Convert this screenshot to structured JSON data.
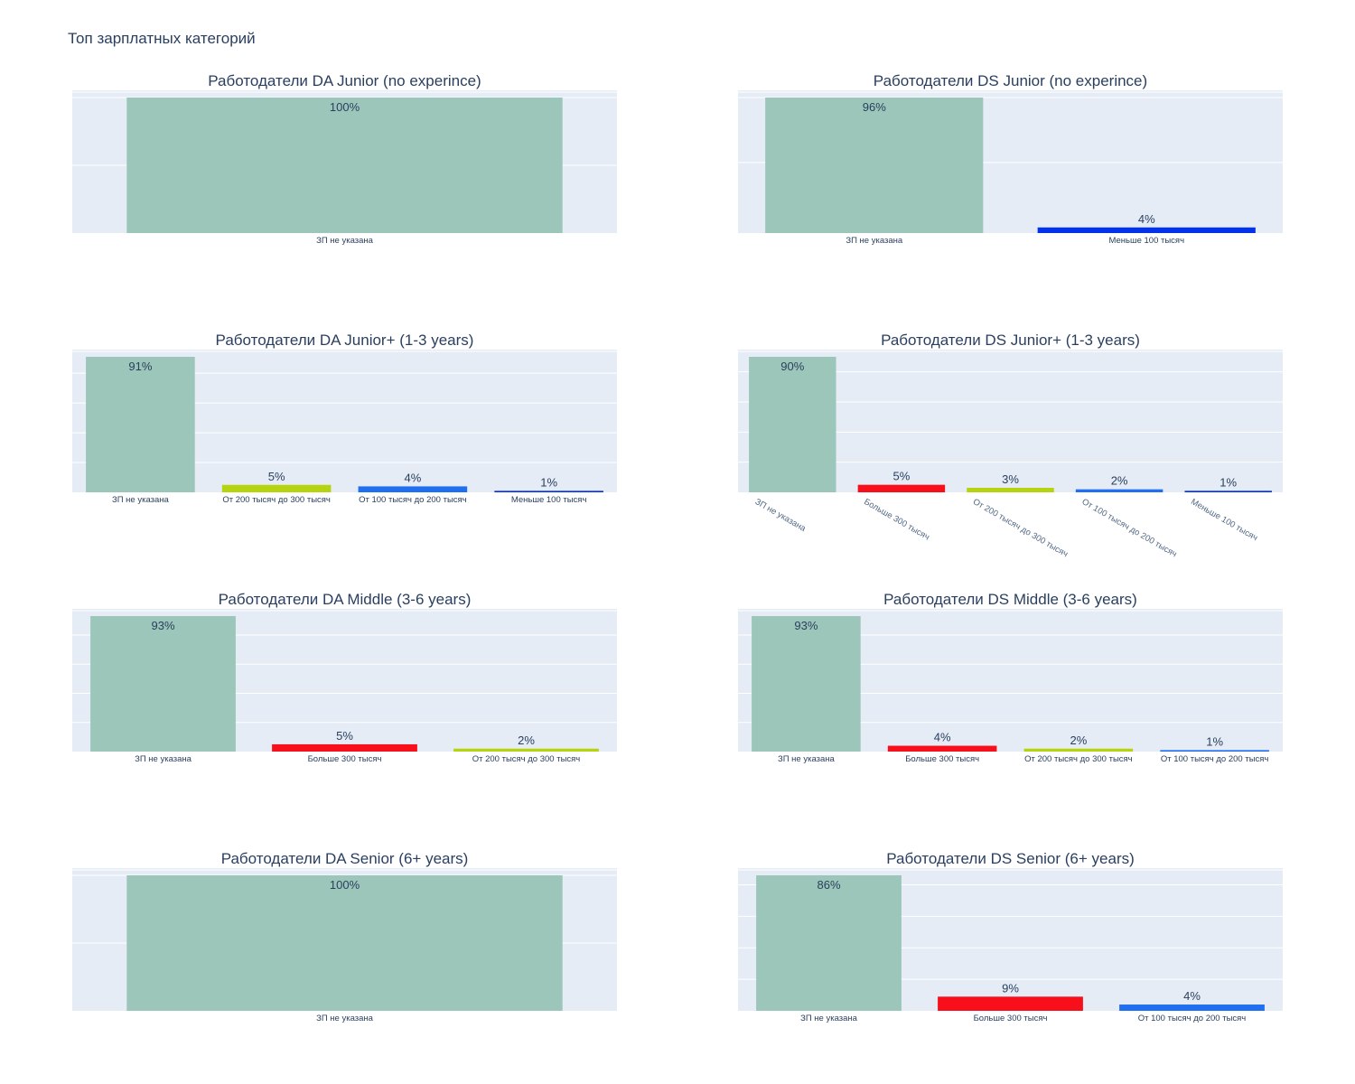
{
  "figure": {
    "title": "Топ зарплатных категорий"
  },
  "colors": {
    "plot_bg": "#e5ecf6",
    "grid": "#ffffff",
    "text": "#2a3f5f",
    "tick_text": "#506784",
    "category_colors": {
      "ЗП не указана": "#9cc6b9",
      "Меньше 100 тысяч": "#0432e6",
      "От 100 тысяч до 200 тысяч": "#1f6ff0",
      "От 200 тысяч до 300 тысяч": "#b5d30f",
      "Больше 300 тысяч": "#f7101c"
    }
  },
  "chart_data": [
    {
      "type": "bar",
      "title": "Работодатели DA Junior (no experince)",
      "categories": [
        "ЗП не указана"
      ],
      "values": [
        100
      ],
      "labels": [
        "100%"
      ],
      "ylim": [
        0,
        100
      ],
      "gridlines": [
        0,
        50,
        100
      ],
      "xtick_rotation": 0
    },
    {
      "type": "bar",
      "title": "Работодатели DS Junior (no experince)",
      "categories": [
        "ЗП не указана",
        "Меньше 100 тысяч"
      ],
      "values": [
        96,
        4
      ],
      "labels": [
        "96%",
        "4%"
      ],
      "ylim": [
        0,
        96
      ],
      "gridlines": [
        0,
        50,
        96
      ],
      "xtick_rotation": 0
    },
    {
      "type": "bar",
      "title": "Работодатели DA Junior+ (1-3 years)",
      "categories": [
        "ЗП не указана",
        "От 200 тысяч до 300 тысяч",
        "От 100 тысяч до 200 тысяч",
        "Меньше 100 тысяч"
      ],
      "values": [
        91,
        5,
        4,
        1
      ],
      "labels": [
        "91%",
        "5%",
        "4%",
        "1%"
      ],
      "ylim": [
        0,
        91
      ],
      "gridlines": [
        0,
        20,
        40,
        60,
        80
      ],
      "xtick_rotation": 0
    },
    {
      "type": "bar",
      "title": "Работодатели DS Junior+ (1-3 years)",
      "categories": [
        "ЗП не указана",
        "Больше 300 тысяч",
        "От 200 тысяч до 300 тысяч",
        "От 100 тысяч до 200 тысяч",
        "Меньше 100 тысяч"
      ],
      "values": [
        90,
        5,
        3,
        2,
        1
      ],
      "labels": [
        "90%",
        "5%",
        "3%",
        "2%",
        "1%"
      ],
      "ylim": [
        0,
        90
      ],
      "gridlines": [
        0,
        20,
        40,
        60,
        80
      ],
      "xtick_rotation": 30
    },
    {
      "type": "bar",
      "title": "Работодатели DA Middle (3-6 years)",
      "categories": [
        "ЗП не указана",
        "Больше 300 тысяч",
        "От 200 тысяч до 300 тысяч"
      ],
      "values": [
        93,
        5,
        2
      ],
      "labels": [
        "93%",
        "5%",
        "2%"
      ],
      "ylim": [
        0,
        93
      ],
      "gridlines": [
        0,
        20,
        40,
        60,
        80
      ],
      "xtick_rotation": 0
    },
    {
      "type": "bar",
      "title": "Работодатели DS Middle (3-6 years)",
      "categories": [
        "ЗП не указана",
        "Больше 300 тысяч",
        "От 200 тысяч до 300 тысяч",
        "От 100 тысяч до 200 тысяч"
      ],
      "values": [
        93,
        4,
        2,
        1
      ],
      "labels": [
        "93%",
        "4%",
        "2%",
        "1%"
      ],
      "ylim": [
        0,
        93
      ],
      "gridlines": [
        0,
        20,
        40,
        60,
        80
      ],
      "xtick_rotation": 0
    },
    {
      "type": "bar",
      "title": "Работодатели DA Senior (6+ years)",
      "categories": [
        "ЗП не указана"
      ],
      "values": [
        100
      ],
      "labels": [
        "100%"
      ],
      "ylim": [
        0,
        100
      ],
      "gridlines": [
        0,
        50,
        100
      ],
      "xtick_rotation": 0
    },
    {
      "type": "bar",
      "title": "Работодатели DS Senior (6+ years)",
      "categories": [
        "ЗП не указана",
        "Больше 300 тысяч",
        "От 100 тысяч до 200 тысяч"
      ],
      "values": [
        86,
        9,
        4
      ],
      "labels": [
        "86%",
        "9%",
        "4%"
      ],
      "ylim": [
        0,
        86
      ],
      "gridlines": [
        0,
        20,
        40,
        60,
        80
      ],
      "xtick_rotation": 0
    }
  ]
}
